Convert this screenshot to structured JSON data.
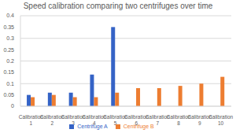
{
  "chart_data": {
    "type": "bar",
    "title": "Speed calibration comparing two centrifuges over time",
    "categories": [
      "Calibration 1",
      "Calibration 2",
      "Calibration 3",
      "Calibration 4",
      "Calibration 5",
      "Calibration 6",
      "Calibration 7",
      "Calibration 8",
      "Calibration 9",
      "Calibration 10"
    ],
    "series": [
      {
        "name": "Centrifuge A",
        "color": "#3563c6",
        "values": [
          0.05,
          0.06,
          0.06,
          0.14,
          0.35,
          null,
          null,
          null,
          null,
          null
        ]
      },
      {
        "name": "Centrifuge B",
        "color": "#ed7d31",
        "values": [
          0.04,
          0.05,
          0.04,
          0.04,
          0.06,
          0.08,
          0.08,
          0.09,
          0.1,
          0.13
        ]
      }
    ],
    "ylim": [
      0,
      0.4
    ],
    "yticks": [
      0,
      0.05,
      0.1,
      0.15,
      0.2,
      0.25,
      0.3,
      0.35,
      0.4
    ],
    "grid": true,
    "legend": "bottom"
  }
}
